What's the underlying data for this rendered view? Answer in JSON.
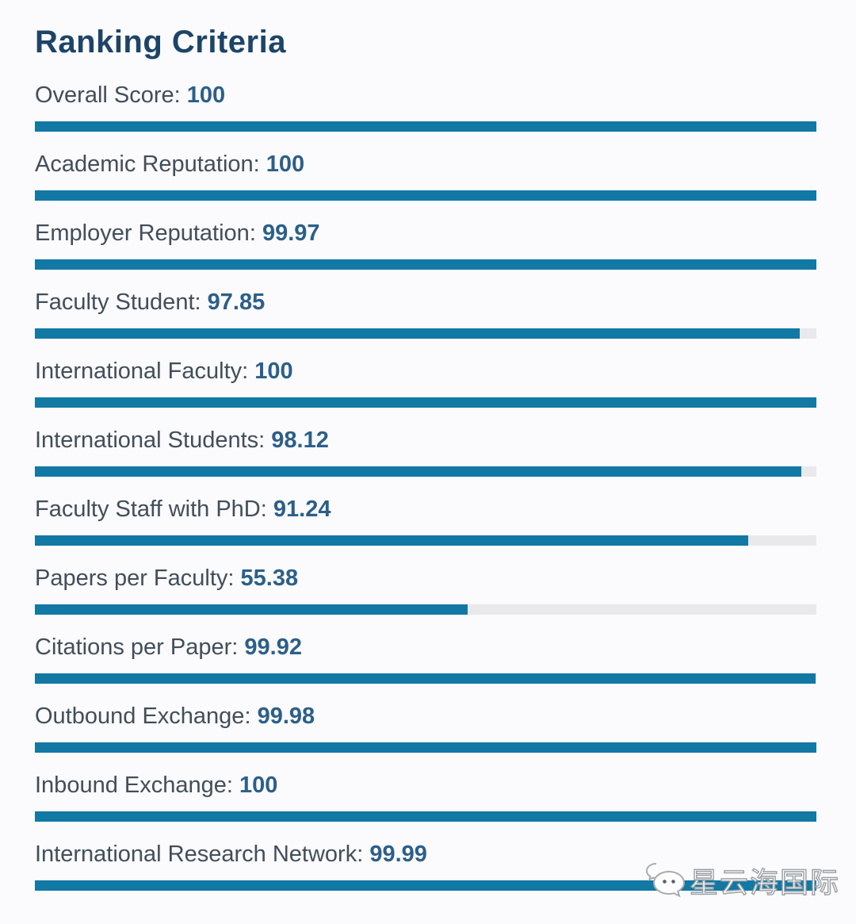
{
  "page": {
    "title": "Ranking Criteria"
  },
  "criteria": [
    {
      "label": "Overall Score",
      "display": "100",
      "value": 100
    },
    {
      "label": "Academic Reputation",
      "display": "100",
      "value": 100
    },
    {
      "label": "Employer Reputation",
      "display": "99.97",
      "value": 99.97
    },
    {
      "label": "Faculty Student",
      "display": "97.85",
      "value": 97.85
    },
    {
      "label": "International Faculty",
      "display": "100",
      "value": 100
    },
    {
      "label": "International Students",
      "display": "98.12",
      "value": 98.12
    },
    {
      "label": "Faculty Staff with PhD",
      "display": "91.24",
      "value": 91.24
    },
    {
      "label": "Papers per Faculty",
      "display": "55.38",
      "value": 55.38
    },
    {
      "label": "Citations per Paper",
      "display": "99.92",
      "value": 99.92
    },
    {
      "label": "Outbound Exchange",
      "display": "99.98",
      "value": 99.98
    },
    {
      "label": "Inbound Exchange",
      "display": "100",
      "value": 100
    },
    {
      "label": "International Research Network",
      "display": "99.99",
      "value": 99.99
    }
  ],
  "chart_data": {
    "type": "bar",
    "orientation": "horizontal",
    "title": "Ranking Criteria",
    "categories": [
      "Overall Score",
      "Academic Reputation",
      "Employer Reputation",
      "Faculty Student",
      "International Faculty",
      "International Students",
      "Faculty Staff with PhD",
      "Papers per Faculty",
      "Citations per Paper",
      "Outbound Exchange",
      "Inbound Exchange",
      "International Research Network"
    ],
    "values": [
      100,
      100,
      99.97,
      97.85,
      100,
      98.12,
      91.24,
      55.38,
      99.92,
      99.98,
      100,
      99.99
    ],
    "xlabel": "",
    "ylabel": "",
    "xlim": [
      0,
      100
    ],
    "grid": false,
    "legend": "none",
    "data_labels": "inline-with-category"
  },
  "watermark": {
    "text": "星云海国际",
    "icon": "wechat-icon"
  },
  "colors": {
    "background": "#fbfafc",
    "title": "#1d4468",
    "label": "#414e5b",
    "value": "#2b5f8a",
    "bar_fill": "#1278a4",
    "bar_track": "#e9e8ea"
  }
}
